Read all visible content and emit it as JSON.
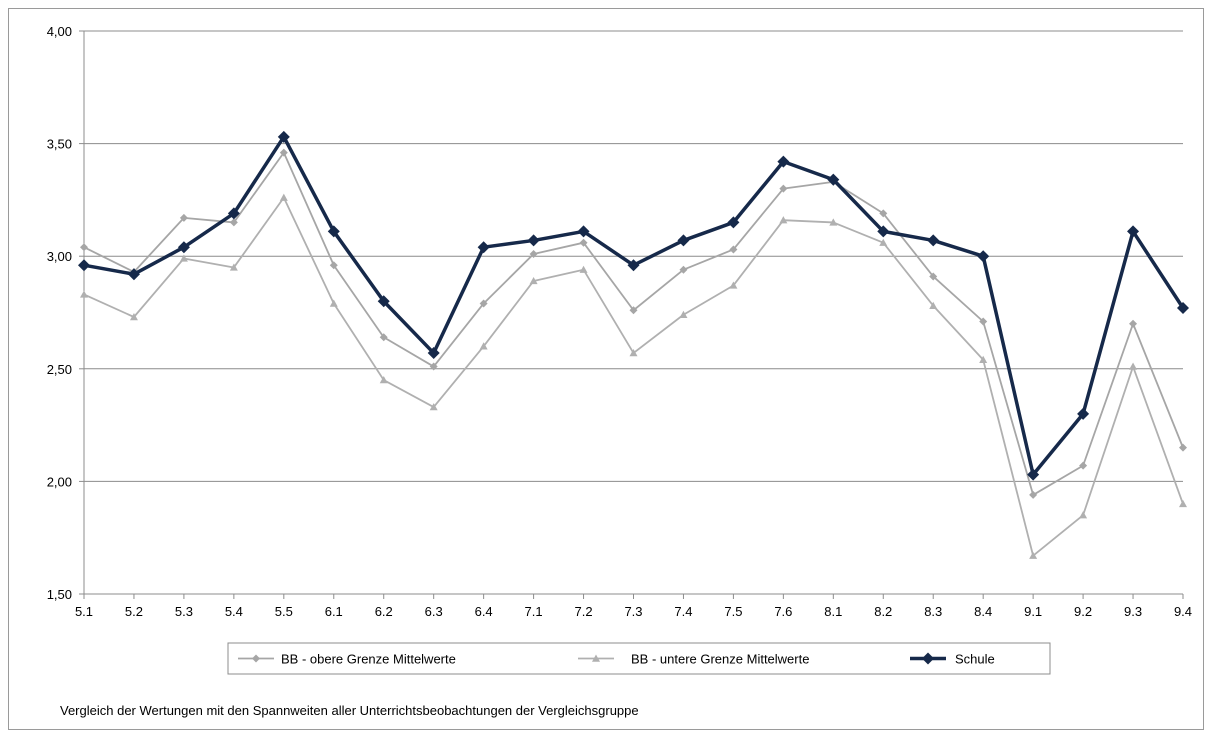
{
  "chart_data": {
    "type": "line",
    "title": "",
    "xlabel": "",
    "ylabel": "",
    "categories": [
      "5.1",
      "5.2",
      "5.3",
      "5.4",
      "5.5",
      "6.1",
      "6.2",
      "6.3",
      "6.4",
      "7.1",
      "7.2",
      "7.3",
      "7.4",
      "7.5",
      "7.6",
      "8.1",
      "8.2",
      "8.3",
      "8.4",
      "9.1",
      "9.2",
      "9.3",
      "9.4"
    ],
    "ylim": [
      1.5,
      4.0
    ],
    "yticks": [
      1.5,
      2.0,
      2.5,
      3.0,
      3.5,
      4.0
    ],
    "ytick_labels": [
      "1,50",
      "2,00",
      "2,50",
      "3,00",
      "3,50",
      "4,00"
    ],
    "grid": "horizontal",
    "legend_position": "bottom",
    "series": [
      {
        "name": "BB - obere Grenze  Mittelwerte",
        "color": "#a6a6a6",
        "marker": "diamond",
        "values": [
          3.04,
          2.93,
          3.17,
          3.15,
          3.46,
          2.96,
          2.64,
          2.51,
          2.79,
          3.01,
          3.06,
          2.76,
          2.94,
          3.03,
          3.3,
          3.33,
          3.19,
          2.91,
          2.71,
          1.94,
          2.07,
          2.7,
          2.15
        ]
      },
      {
        "name": "BB - untere  Grenze  Mittelwerte",
        "color": "#b0b0b0",
        "marker": "triangle",
        "values": [
          2.83,
          2.73,
          2.99,
          2.95,
          3.26,
          2.79,
          2.45,
          2.33,
          2.6,
          2.89,
          2.94,
          2.57,
          2.74,
          2.87,
          3.16,
          3.15,
          3.06,
          2.78,
          2.54,
          1.67,
          1.85,
          2.51,
          1.9
        ]
      },
      {
        "name": "Schule",
        "color": "#16294a",
        "marker": "diamond",
        "values": [
          2.96,
          2.92,
          3.04,
          3.19,
          3.53,
          3.11,
          2.8,
          2.57,
          3.04,
          3.07,
          3.11,
          2.96,
          3.07,
          3.15,
          3.42,
          3.34,
          3.11,
          3.07,
          3.0,
          2.03,
          2.3,
          3.11,
          2.77
        ]
      }
    ],
    "caption": "Vergleich  der  Wertungen  mit den Spannweiten   aller Unterrichtsbeobachtungen der Vergleichsgruppe"
  }
}
